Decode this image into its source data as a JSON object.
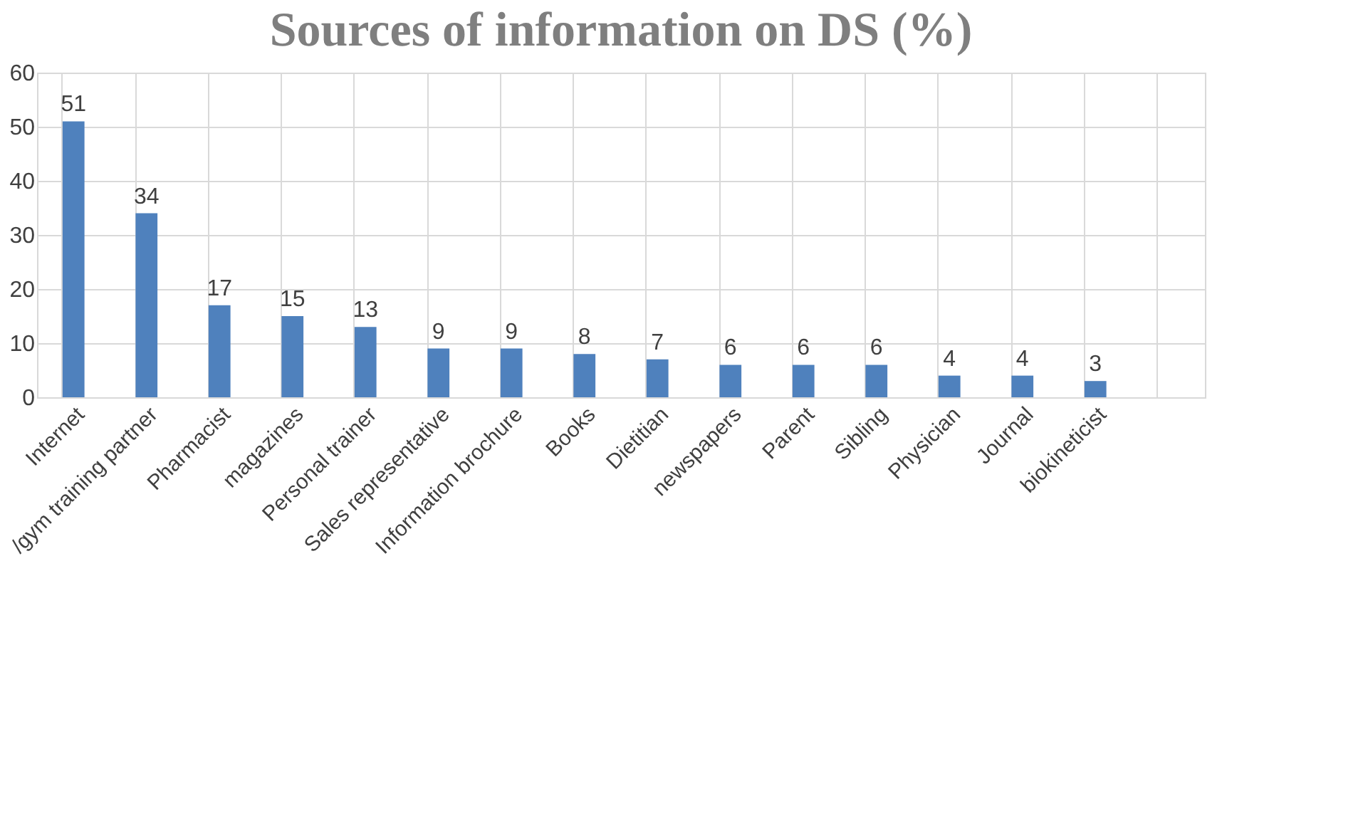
{
  "chart_data": {
    "type": "bar",
    "title": "Sources of information on DS (%)",
    "categories": [
      "Internet",
      "/gym training partner",
      "Pharmacist",
      "magazines",
      "Personal trainer",
      "Sales representative",
      "Information brochure",
      "Books",
      "Dietitian",
      "newspapers",
      "Parent",
      "Sibling",
      "Physician",
      "Journal",
      "biokineticist",
      null
    ],
    "values": [
      51,
      34,
      17,
      15,
      13,
      9,
      9,
      8,
      7,
      6,
      6,
      6,
      4,
      4,
      3,
      null
    ],
    "color": "#4f81bd",
    "ylim": [
      0,
      60
    ],
    "yticks": [
      0,
      10,
      20,
      30,
      40,
      50,
      60
    ],
    "grid": true,
    "data_labels": true
  }
}
